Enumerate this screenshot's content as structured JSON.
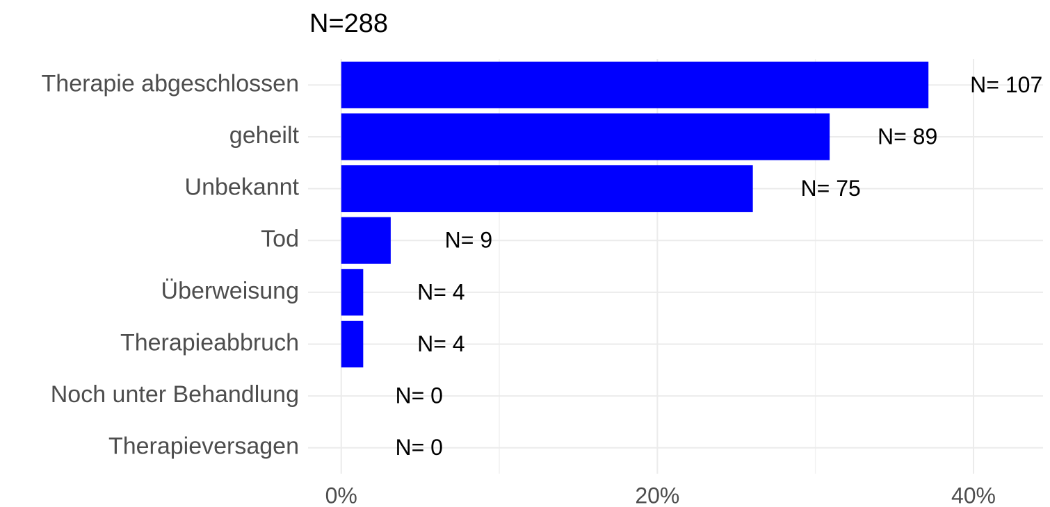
{
  "chart_data": {
    "type": "barh",
    "title": "N=288",
    "categories": [
      "Therapie abgeschlossen",
      "geheilt",
      "Unbekannt",
      "Tod",
      "Überweisung",
      "Therapieabbruch",
      "Noch unter Behandlung",
      "Therapieversagen"
    ],
    "values": [
      37.15,
      30.9,
      26.04,
      3.13,
      1.39,
      1.39,
      0,
      0
    ],
    "bar_labels": [
      "N= 107",
      "N= 89",
      "N= 75",
      "N= 9",
      "N= 4",
      "N= 4",
      "N= 0",
      "N= 0"
    ],
    "color": "#0000ff",
    "xlim": [
      -2.1,
      44.4
    ],
    "xticks": [
      {
        "value": 0,
        "label": "0%"
      },
      {
        "value": 20,
        "label": "20%"
      },
      {
        "value": 40,
        "label": "40%"
      }
    ],
    "minor_xticks": [
      10,
      30
    ],
    "grid": true
  }
}
